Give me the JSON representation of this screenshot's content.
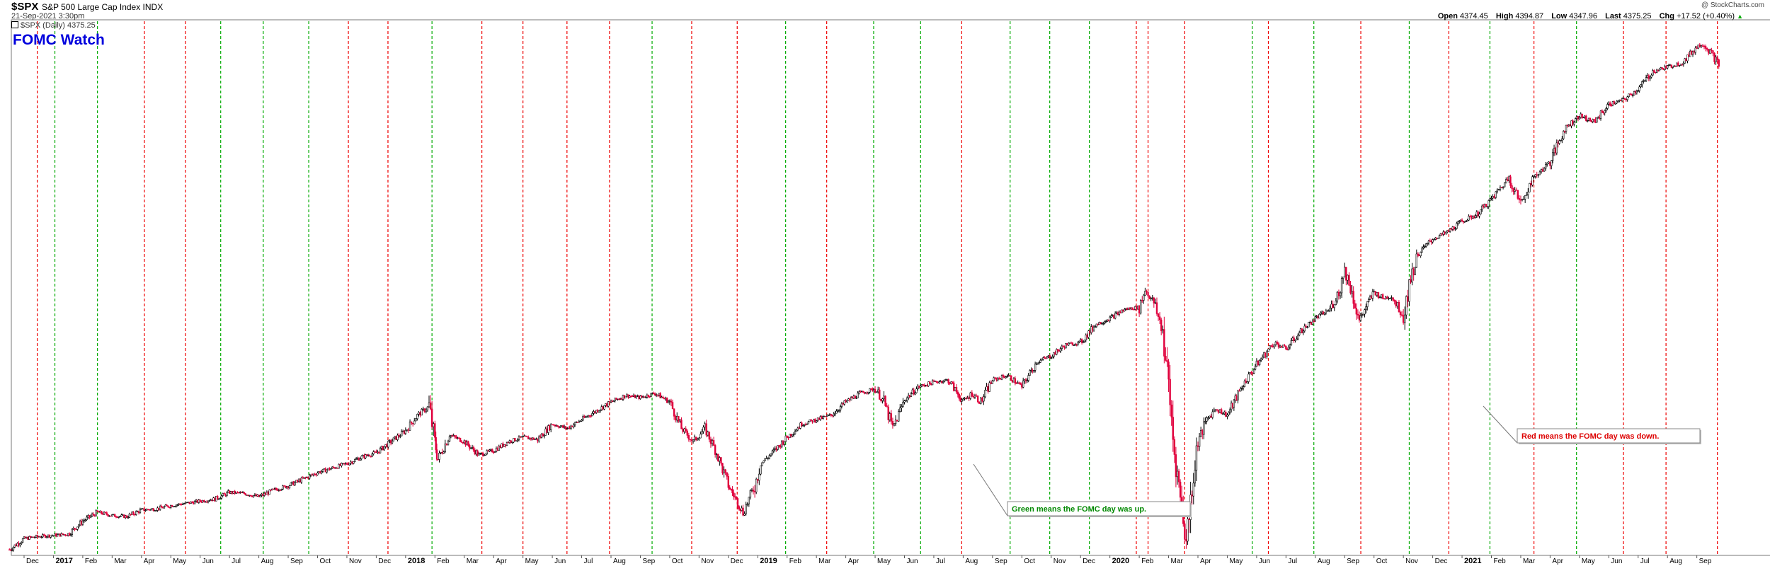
{
  "header": {
    "symbol": "$SPX",
    "index_name": "S&P 500 Large Cap Index INDX",
    "datetime": "21-Sep-2021 3:30pm",
    "legend": "$SPX (Daily) 4375.25",
    "watermark": "@ StockCharts.com",
    "open_label": "Open",
    "open": "4374.45",
    "high_label": "High",
    "high": "4394.87",
    "low_label": "Low",
    "low": "4347.96",
    "last_label": "Last",
    "last": "4375.25",
    "chg_label": "Chg",
    "chg": "+17.52 (+0.40%)",
    "chg_marker": "▲"
  },
  "colors": {
    "up_candle": "#000000",
    "down_candle": "#e0003c",
    "fomc_up": "#00aa00",
    "fomc_down": "#ee0000",
    "title": "#0000dd",
    "green_note_text": "#008800",
    "red_note_text": "#dd0000"
  },
  "chart_data": {
    "type": "line",
    "title": "FOMC Watch",
    "subtype": "daily candlestick",
    "ylim": [
      2200,
      4550
    ],
    "y_ticks": [
      2200,
      2250,
      2300,
      2350,
      2400,
      2450,
      2500,
      2550,
      2600,
      2650,
      2700,
      2750,
      2800,
      2850,
      2900,
      2950,
      3000,
      3050,
      3100,
      3150,
      3200,
      3250,
      3300,
      3350,
      3400,
      3450,
      3500,
      3550,
      3600,
      3650,
      3700,
      3750,
      3800,
      3850,
      3900,
      3950,
      4000,
      4050,
      4100,
      4150,
      4200,
      4250,
      4300,
      4350,
      4400,
      4450,
      4500,
      4550
    ],
    "grid": false,
    "x_axis_labels": [
      "Dec",
      "2017",
      "Feb",
      "Mar",
      "Apr",
      "May",
      "Jun",
      "Jul",
      "Aug",
      "Sep",
      "Oct",
      "Nov",
      "Dec",
      "2018",
      "Feb",
      "Mar",
      "Apr",
      "May",
      "Jun",
      "Jul",
      "Aug",
      "Sep",
      "Oct",
      "Nov",
      "Dec",
      "2019",
      "Feb",
      "Mar",
      "Apr",
      "May",
      "Jun",
      "Jul",
      "Aug",
      "Sep",
      "Oct",
      "Nov",
      "Dec",
      "2020",
      "Feb",
      "Mar",
      "Apr",
      "May",
      "Jun",
      "Jul",
      "Aug",
      "Sep",
      "Oct",
      "Nov",
      "Dec",
      "2021",
      "Feb",
      "Mar",
      "Apr",
      "May",
      "Jun",
      "Jul",
      "Aug",
      "Sep"
    ],
    "x_axis_bold": [
      "2017",
      "2018",
      "2019",
      "2020",
      "2021"
    ],
    "x_axis_month_index": [
      0,
      1,
      2,
      3,
      4,
      5,
      6,
      7,
      8,
      9,
      10,
      11,
      12,
      13,
      14,
      15,
      16,
      17,
      18,
      19,
      20,
      21,
      22,
      23,
      24,
      25,
      26,
      27,
      28,
      29,
      30,
      31,
      32,
      33,
      34,
      35,
      36,
      37,
      38,
      39,
      40,
      41,
      42,
      43,
      44,
      45,
      46,
      47,
      48,
      49,
      50,
      51,
      52,
      53,
      54,
      55,
      56,
      57
    ],
    "x_month_range": [
      -0.6,
      58.0
    ],
    "series": [
      {
        "x_month_index": [
          -0.5,
          0,
          0.5,
          1,
          1.5,
          2,
          2.5,
          3,
          3.5,
          4,
          4.5,
          5,
          5.5,
          6,
          6.5,
          7,
          7.5,
          8,
          8.5,
          9,
          9.5,
          10,
          10.5,
          11,
          11.5,
          12,
          12.5,
          13,
          13.4,
          13.8,
          14.0,
          14.1,
          14.5,
          15,
          15.5,
          16,
          16.5,
          17,
          17.5,
          18,
          18.5,
          19,
          19.5,
          20,
          20.5,
          21,
          21.5,
          22,
          22.4,
          22.8,
          23.2,
          23.6,
          24.0,
          24.5,
          24.9,
          25.1,
          25.5,
          26,
          26.5,
          27,
          27.5,
          28,
          28.5,
          29,
          29.3,
          29.6,
          30,
          30.5,
          31,
          31.5,
          32,
          32.3,
          32.6,
          33,
          33.5,
          34,
          34.5,
          35,
          35.5,
          36,
          36.5,
          37,
          37.5,
          38,
          38.2,
          38.5,
          38.8,
          39.0,
          39.2,
          39.4,
          39.6,
          39.8,
          40.0,
          40.3,
          40.6,
          41,
          41.5,
          42,
          42.3,
          42.6,
          43,
          43.5,
          44,
          44.5,
          44.8,
          45,
          45.2,
          45.5,
          46,
          46.3,
          46.6,
          47,
          47.2,
          47.5,
          48,
          48.5,
          49,
          49.5,
          50,
          50.3,
          50.6,
          51,
          51.3,
          51.6,
          52,
          52.5,
          53,
          53.5,
          54,
          54.5,
          55,
          55.5,
          56,
          56.5,
          57,
          57.2,
          57.5,
          57.8
        ],
        "values": [
          2210,
          2260,
          2270,
          2275,
          2280,
          2340,
          2380,
          2365,
          2360,
          2390,
          2395,
          2410,
          2420,
          2430,
          2440,
          2470,
          2465,
          2450,
          2480,
          2500,
          2530,
          2560,
          2580,
          2600,
          2630,
          2650,
          2700,
          2750,
          2820,
          2860,
          2700,
          2620,
          2730,
          2700,
          2640,
          2660,
          2700,
          2720,
          2710,
          2780,
          2760,
          2800,
          2840,
          2880,
          2910,
          2900,
          2920,
          2880,
          2760,
          2700,
          2760,
          2650,
          2500,
          2380,
          2500,
          2600,
          2650,
          2720,
          2780,
          2800,
          2820,
          2880,
          2920,
          2940,
          2880,
          2760,
          2890,
          2950,
          2970,
          2980,
          2880,
          2920,
          2880,
          2980,
          3000,
          2950,
          3060,
          3090,
          3140,
          3150,
          3230,
          3260,
          3300,
          3310,
          3390,
          3330,
          3200,
          2950,
          2650,
          2450,
          2250,
          2500,
          2700,
          2800,
          2850,
          2820,
          2950,
          3050,
          3100,
          3150,
          3120,
          3200,
          3260,
          3300,
          3380,
          3480,
          3400,
          3250,
          3380,
          3350,
          3360,
          3270,
          3420,
          3550,
          3620,
          3650,
          3700,
          3730,
          3800,
          3850,
          3900,
          3780,
          3870,
          3920,
          3970,
          4120,
          4180,
          4150,
          4230,
          4250,
          4300,
          4380,
          4400,
          4420,
          4490,
          4510,
          4460,
          4400,
          4375
        ]
      }
    ],
    "fomc_meetings": [
      {
        "x_month_index": 0.45,
        "result": "down"
      },
      {
        "x_month_index": 1.05,
        "result": "up"
      },
      {
        "x_month_index": 2.5,
        "result": "up"
      },
      {
        "x_month_index": 4.1,
        "result": "down"
      },
      {
        "x_month_index": 5.5,
        "result": "down"
      },
      {
        "x_month_index": 6.7,
        "result": "up"
      },
      {
        "x_month_index": 8.15,
        "result": "up"
      },
      {
        "x_month_index": 9.7,
        "result": "up"
      },
      {
        "x_month_index": 11.05,
        "result": "down"
      },
      {
        "x_month_index": 12.4,
        "result": "down"
      },
      {
        "x_month_index": 13.9,
        "result": "up"
      },
      {
        "x_month_index": 15.6,
        "result": "down"
      },
      {
        "x_month_index": 17.0,
        "result": "down"
      },
      {
        "x_month_index": 18.5,
        "result": "down"
      },
      {
        "x_month_index": 19.95,
        "result": "down"
      },
      {
        "x_month_index": 21.4,
        "result": "up"
      },
      {
        "x_month_index": 22.75,
        "result": "down"
      },
      {
        "x_month_index": 24.3,
        "result": "down"
      },
      {
        "x_month_index": 25.95,
        "result": "up"
      },
      {
        "x_month_index": 27.35,
        "result": "down"
      },
      {
        "x_month_index": 28.95,
        "result": "up"
      },
      {
        "x_month_index": 30.55,
        "result": "up"
      },
      {
        "x_month_index": 31.95,
        "result": "down"
      },
      {
        "x_month_index": 33.6,
        "result": "up"
      },
      {
        "x_month_index": 34.95,
        "result": "up"
      },
      {
        "x_month_index": 36.3,
        "result": "up"
      },
      {
        "x_month_index": 37.9,
        "result": "down"
      },
      {
        "x_month_index": 38.3,
        "result": "down"
      },
      {
        "x_month_index": 39.55,
        "result": "down"
      },
      {
        "x_month_index": 41.85,
        "result": "up"
      },
      {
        "x_month_index": 42.4,
        "result": "down"
      },
      {
        "x_month_index": 43.95,
        "result": "up"
      },
      {
        "x_month_index": 45.55,
        "result": "down"
      },
      {
        "x_month_index": 47.2,
        "result": "up"
      },
      {
        "x_month_index": 48.55,
        "result": "down"
      },
      {
        "x_month_index": 49.95,
        "result": "up"
      },
      {
        "x_month_index": 51.45,
        "result": "down"
      },
      {
        "x_month_index": 52.9,
        "result": "up"
      },
      {
        "x_month_index": 54.5,
        "result": "down"
      },
      {
        "x_month_index": 55.95,
        "result": "down"
      },
      {
        "x_month_index": 57.7,
        "result": "down"
      }
    ],
    "annotations": [
      {
        "text": "Green means the FOMC day was up.",
        "color": "green"
      },
      {
        "text": "Red means the FOMC day was down.",
        "color": "red"
      }
    ]
  }
}
